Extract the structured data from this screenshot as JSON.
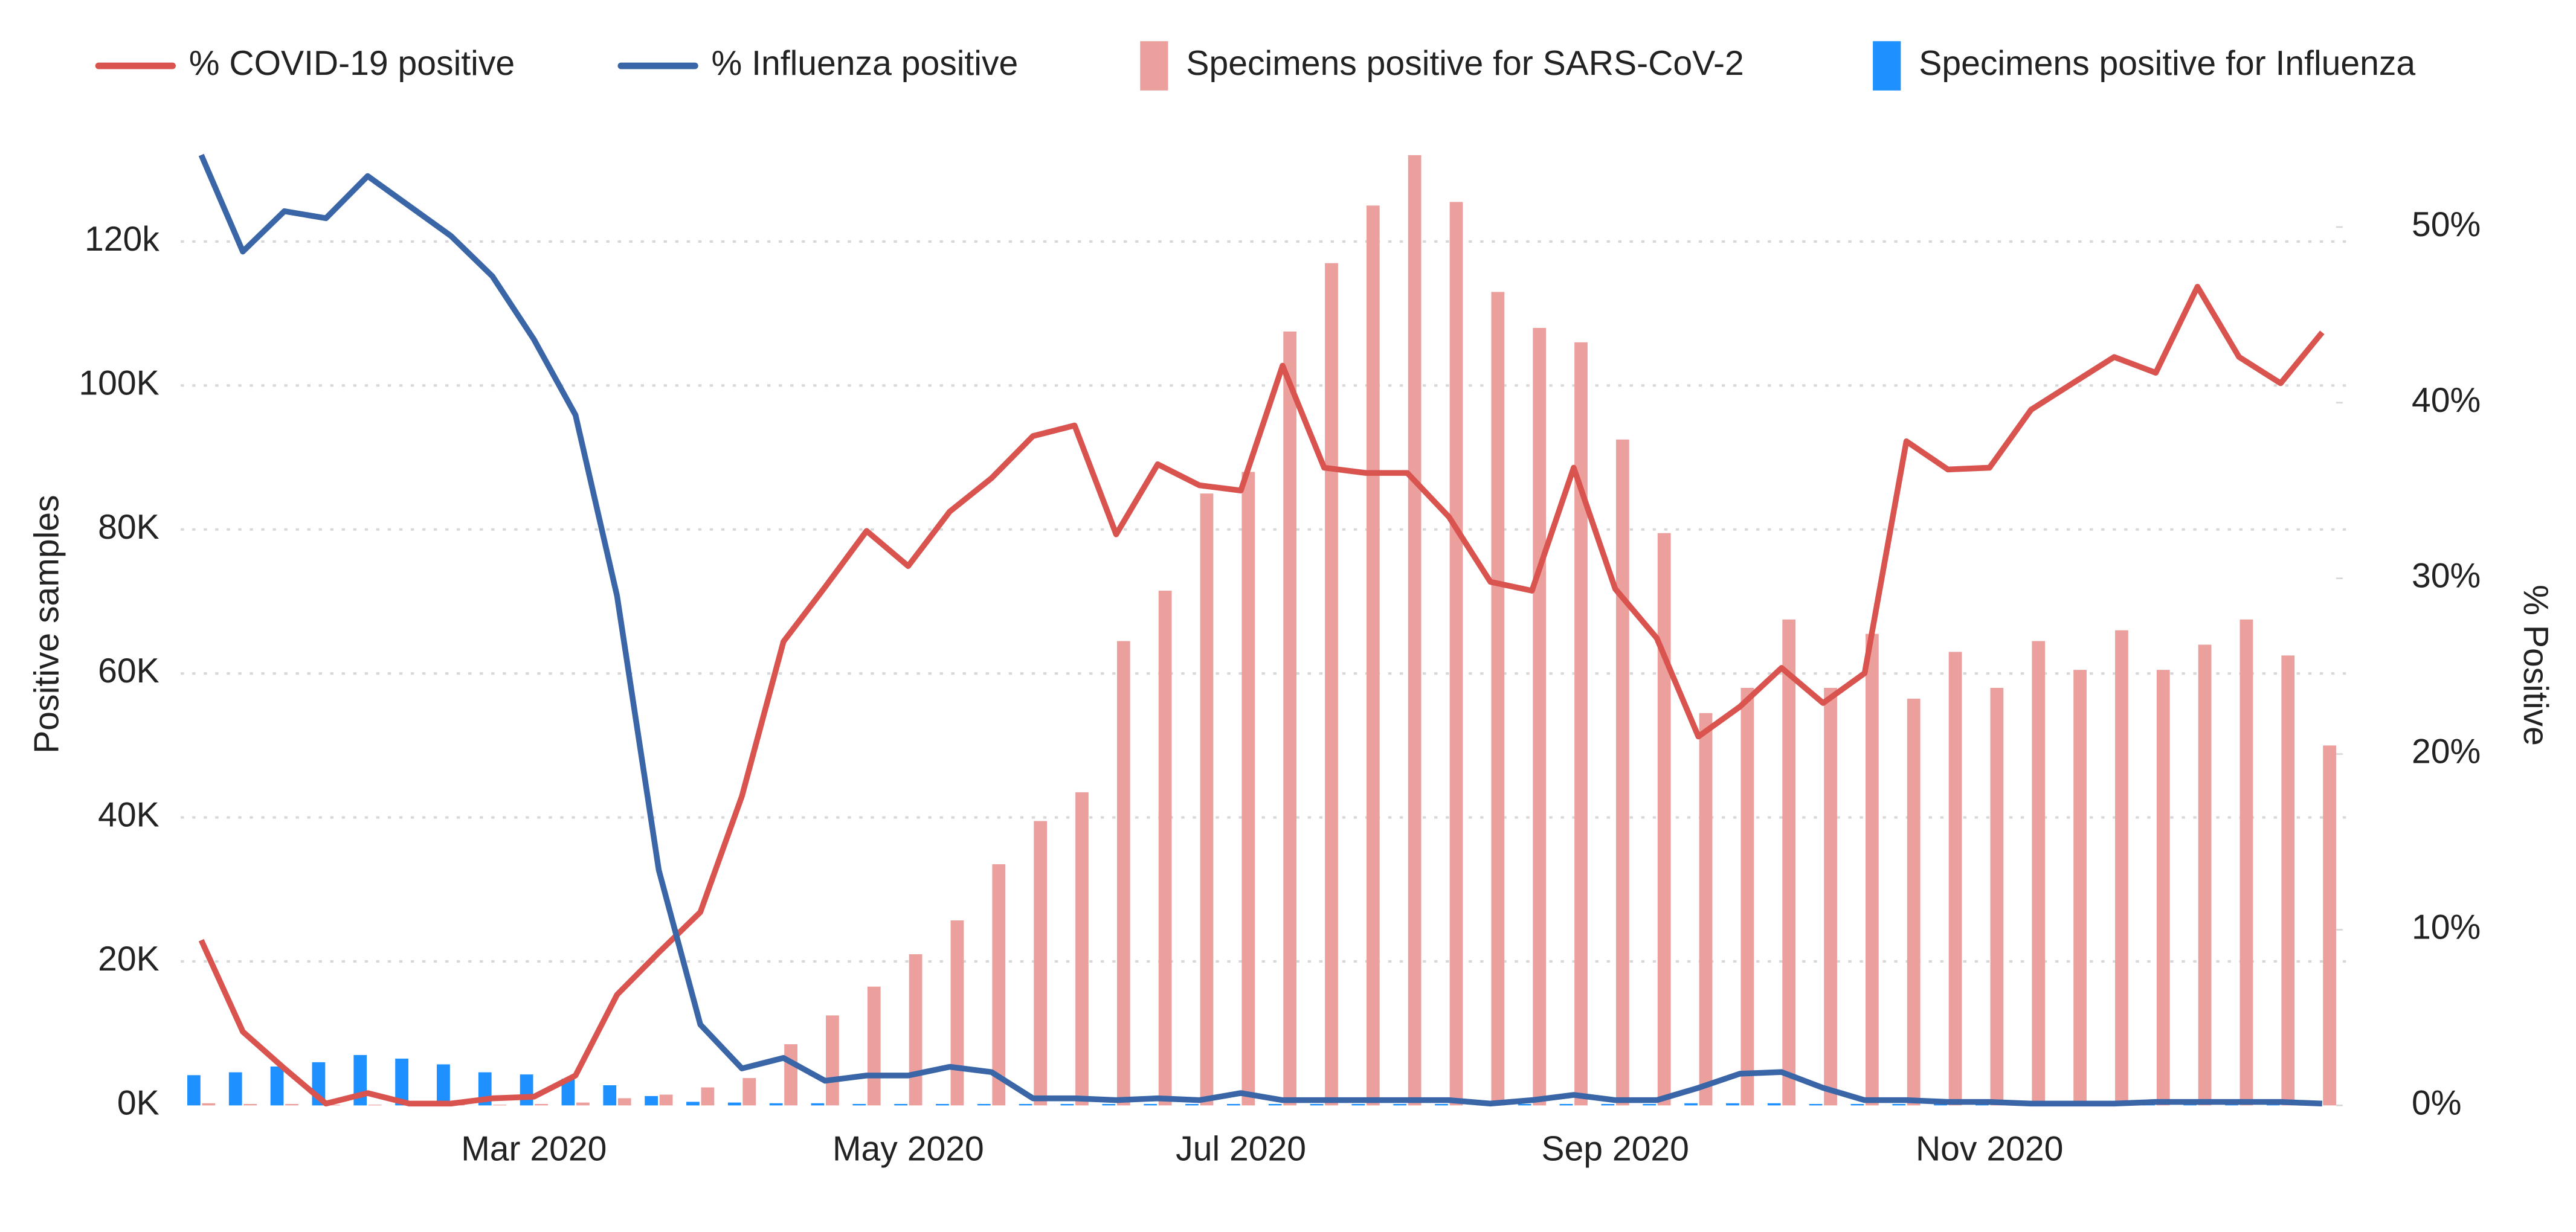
{
  "chart_data": {
    "type": "combo",
    "y_label": "Positive samples",
    "y2_label": "% Positive",
    "categories": [
      null,
      null,
      null,
      null,
      null,
      null,
      null,
      null,
      "Mar 2020",
      null,
      null,
      null,
      null,
      null,
      null,
      null,
      null,
      "May 2020",
      null,
      null,
      null,
      null,
      null,
      null,
      null,
      "Jul 2020",
      null,
      null,
      null,
      null,
      null,
      null,
      null,
      null,
      "Sep 2020",
      null,
      null,
      null,
      null,
      null,
      null,
      null,
      null,
      "Nov 2020",
      null,
      null,
      null,
      null,
      null,
      null,
      null,
      null
    ],
    "ylim": [
      0,
      133000
    ],
    "yticks": [
      {
        "value": 0,
        "label": "0K"
      },
      {
        "value": 20000,
        "label": "20K"
      },
      {
        "value": 40000,
        "label": "40K"
      },
      {
        "value": 60000,
        "label": "60K"
      },
      {
        "value": 80000,
        "label": "80K"
      },
      {
        "value": 100000,
        "label": "100K"
      },
      {
        "value": 120000,
        "label": "120k"
      }
    ],
    "y2lim": [
      0,
      54.5
    ],
    "y2ticks": [
      {
        "value": 0,
        "label": "0%"
      },
      {
        "value": 10,
        "label": "10%"
      },
      {
        "value": 20,
        "label": "20%"
      },
      {
        "value": 30,
        "label": "30%"
      },
      {
        "value": 40,
        "label": "40%"
      },
      {
        "value": 50,
        "label": "50%"
      }
    ],
    "grid": true,
    "legend": "top",
    "series": [
      {
        "name": "% COVID-19 positive",
        "type": "line",
        "axis": "y2",
        "color": "#d9534f",
        "values": [
          9.4,
          4.2,
          2.1,
          0.1,
          0.7,
          0.1,
          0.1,
          0.4,
          0.5,
          1.7,
          6.3,
          8.7,
          11.0,
          17.6,
          26.4,
          29.5,
          32.7,
          30.7,
          33.8,
          35.7,
          38.1,
          38.7,
          32.5,
          36.5,
          35.3,
          35.0,
          42.1,
          36.3,
          36.0,
          36.0,
          33.5,
          29.8,
          29.3,
          36.3,
          29.4,
          26.6,
          21.0,
          22.7,
          24.9,
          22.9,
          24.6,
          37.8,
          36.2,
          36.3,
          39.6,
          41.1,
          42.6,
          41.7,
          46.6,
          42.6,
          41.1,
          44.0
        ]
      },
      {
        "name": "% Influenza positive",
        "type": "line",
        "axis": "y2",
        "color": "#3a66a7",
        "values": [
          54.1,
          48.6,
          50.9,
          50.5,
          52.9,
          51.2,
          49.5,
          47.2,
          43.6,
          39.3,
          29.0,
          13.4,
          4.6,
          2.1,
          2.7,
          1.4,
          1.7,
          1.7,
          2.2,
          1.9,
          0.4,
          0.4,
          0.3,
          0.4,
          0.3,
          0.7,
          0.3,
          0.3,
          0.3,
          0.3,
          0.3,
          0.1,
          0.3,
          0.6,
          0.3,
          0.3,
          1.0,
          1.8,
          1.9,
          1.0,
          0.3,
          0.3,
          0.2,
          0.2,
          0.1,
          0.1,
          0.1,
          0.2,
          0.2,
          0.2,
          0.2,
          0.1
        ]
      },
      {
        "name": "Specimens positive for SARS-CoV-2",
        "type": "bar",
        "axis": "y",
        "color": "#eba09e",
        "values": [
          300,
          200,
          200,
          100,
          100,
          100,
          100,
          100,
          200,
          400,
          1000,
          1500,
          2500,
          3800,
          8500,
          12500,
          16500,
          21000,
          25700,
          33500,
          39500,
          43500,
          64500,
          71500,
          85000,
          88000,
          107500,
          117000,
          125000,
          132000,
          125500,
          113000,
          108000,
          106000,
          92500,
          79500,
          54500,
          58000,
          67500,
          58000,
          65500,
          56500,
          63000,
          58000,
          64500,
          60500,
          66000,
          60500,
          64000,
          67500,
          62500,
          50000
        ]
      },
      {
        "name": "Specimens positive for Influenza",
        "type": "bar",
        "axis": "y",
        "color": "#1e90ff",
        "values": [
          4200,
          4600,
          5400,
          6000,
          7000,
          6500,
          5700,
          4600,
          4300,
          3700,
          2800,
          1300,
          500,
          400,
          300,
          300,
          200,
          200,
          200,
          200,
          200,
          200,
          200,
          200,
          200,
          200,
          200,
          200,
          200,
          200,
          200,
          100,
          200,
          200,
          200,
          200,
          300,
          300,
          300,
          200,
          200,
          200,
          200,
          200,
          100,
          100,
          100,
          100,
          100,
          100,
          100,
          100
        ]
      }
    ]
  }
}
